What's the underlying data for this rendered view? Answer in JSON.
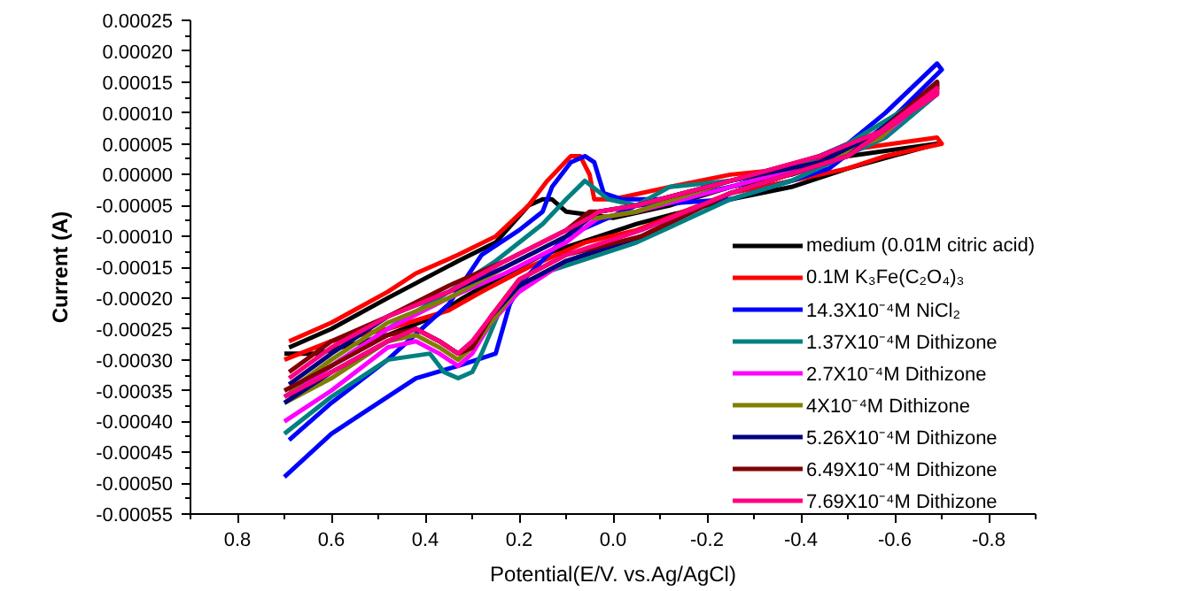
{
  "chart_data": {
    "type": "line",
    "xlabel": "Potential(E/V. vs.Ag/AgCl)",
    "ylabel": "Current (A)",
    "xlim": [
      0.9,
      -0.9
    ],
    "ylim": [
      -0.00055,
      0.00025
    ],
    "xticks": [
      {
        "value": 0.9,
        "label": null
      },
      0.8,
      {
        "value": 0.7,
        "label": null
      },
      0.6,
      {
        "value": 0.5,
        "label": null
      },
      0.4,
      {
        "value": 0.3,
        "label": null
      },
      0.2,
      {
        "value": 0.1,
        "label": null
      },
      {
        "value": 0,
        "label": "0.0"
      },
      {
        "value": -0.1,
        "label": null
      },
      -0.2,
      {
        "value": -0.3,
        "label": null
      },
      -0.4,
      {
        "value": -0.5,
        "label": null
      },
      -0.6,
      {
        "value": -0.7,
        "label": null
      },
      -0.8,
      {
        "value": -0.9,
        "label": null
      }
    ],
    "yticks": [
      0.00025,
      {
        "value": 0.000225,
        "label": null
      },
      {
        "value": 0.0002,
        "label": "0.00020"
      },
      {
        "value": 0.000175,
        "label": null
      },
      0.00015,
      {
        "value": 0.000125,
        "label": null
      },
      {
        "value": 0.0001,
        "label": "0.00010"
      },
      {
        "value": 7.5e-05,
        "label": null
      },
      {
        "value": 5e-05,
        "label": "0.00005"
      },
      {
        "value": 2.5e-05,
        "label": null
      },
      {
        "value": 0,
        "label": "0.00000"
      },
      {
        "value": -2.5e-05,
        "label": null
      },
      {
        "value": -5e-05,
        "label": "-0.00005"
      },
      {
        "value": -7.5e-05,
        "label": null
      },
      {
        "value": -0.0001,
        "label": "-0.00010"
      },
      {
        "value": -0.000125,
        "label": null
      },
      -0.00015,
      {
        "value": -0.000175,
        "label": null
      },
      {
        "value": -0.0002,
        "label": "-0.00020"
      },
      {
        "value": -0.000225,
        "label": null
      },
      -0.00025,
      {
        "value": -0.000275,
        "label": null
      },
      {
        "value": -0.0003,
        "label": "-0.00030"
      },
      {
        "value": -0.000325,
        "label": null
      },
      -0.00035,
      {
        "value": -0.000375,
        "label": null
      },
      {
        "value": -0.0004,
        "label": "-0.00040"
      },
      {
        "value": -0.000425,
        "label": null
      },
      -0.00045,
      {
        "value": -0.000475,
        "label": null
      },
      {
        "value": -0.0005,
        "label": "-0.00050"
      },
      {
        "value": -0.000525,
        "label": null
      },
      -0.00055
    ],
    "legend": "bottom right",
    "series": [
      {
        "name": "medium (0.01M citric acid)",
        "color": "#000000",
        "x": [
          0.69,
          0.6,
          0.48,
          0.33,
          0.25,
          0.18,
          0.15,
          0.13,
          0.1,
          0.0,
          -0.12,
          -0.25,
          -0.38,
          -0.5,
          -0.69,
          -0.69,
          -0.5,
          -0.38,
          -0.25,
          -0.05,
          0.15,
          0.25,
          0.32,
          0.38,
          0.48,
          0.63,
          0.7
        ],
        "values": [
          -0.00028,
          -0.00025,
          -0.0002,
          -0.00014,
          -0.00011,
          -5e-05,
          -4e-05,
          -4e-05,
          -6e-05,
          -7e-05,
          -5e-05,
          -2e-05,
          0.0,
          3e-05,
          5e-05,
          5e-05,
          1e-05,
          -2e-05,
          -4e-05,
          -8e-05,
          -0.00013,
          -0.00017,
          -0.0002,
          -0.00023,
          -0.00026,
          -0.00029,
          -0.00029
        ]
      },
      {
        "name": "0.1M K₃Fe(C₂O₄)₃",
        "color": "#ff0000",
        "x": [
          0.69,
          0.6,
          0.48,
          0.42,
          0.33,
          0.25,
          0.18,
          0.14,
          0.09,
          0.07,
          0.05,
          0.04,
          0.0,
          -0.12,
          -0.25,
          -0.38,
          -0.5,
          -0.69,
          -0.7,
          -0.58,
          -0.5,
          -0.38,
          -0.25,
          -0.05,
          0.06,
          0.18,
          0.28,
          0.35,
          0.48,
          0.6,
          0.7
        ],
        "values": [
          -0.00027,
          -0.00024,
          -0.00019,
          -0.00016,
          -0.00013,
          -0.0001,
          -5e-05,
          -1e-05,
          3e-05,
          3e-05,
          0.0,
          -4e-05,
          -4e-05,
          -2e-05,
          0.0,
          1e-05,
          4e-05,
          6e-05,
          5e-05,
          3e-05,
          1e-05,
          -1e-05,
          -3e-05,
          -9e-05,
          -0.00011,
          -0.00015,
          -0.00019,
          -0.00022,
          -0.00025,
          -0.00027,
          -0.0003
        ]
      },
      {
        "name": "14.3X10⁻⁴M NiCl₂",
        "color": "#0000ff",
        "x": [
          0.69,
          0.6,
          0.48,
          0.35,
          0.28,
          0.2,
          0.15,
          0.13,
          0.09,
          0.06,
          0.04,
          0.02,
          -0.02,
          -0.12,
          -0.25,
          -0.38,
          -0.5,
          -0.58,
          -0.69,
          -0.7,
          -0.58,
          -0.46,
          -0.38,
          -0.25,
          -0.05,
          0.1,
          0.19,
          0.22,
          0.25,
          0.33,
          0.42,
          0.54,
          0.6,
          0.7
        ],
        "values": [
          -0.00043,
          -0.00037,
          -0.0003,
          -0.00021,
          -0.00013,
          -9e-05,
          -6e-05,
          -2e-05,
          2e-05,
          3e-05,
          2e-05,
          -3e-05,
          -4e-05,
          -4e-05,
          -2e-05,
          1e-05,
          5e-05,
          0.0001,
          0.00018,
          0.00017,
          8e-05,
          1e-05,
          -1e-05,
          -4e-05,
          -5e-05,
          -0.0001,
          -0.00017,
          -0.00021,
          -0.00029,
          -0.00031,
          -0.00033,
          -0.00039,
          -0.00042,
          -0.00049
        ]
      },
      {
        "name": "1.37X10⁻⁴M Dithizone",
        "color": "#008080",
        "x": [
          0.7,
          0.6,
          0.48,
          0.35,
          0.25,
          0.15,
          0.1,
          0.06,
          0.01,
          -0.05,
          -0.12,
          -0.25,
          -0.38,
          -0.5,
          -0.63,
          -0.69,
          -0.69,
          -0.58,
          -0.38,
          -0.25,
          -0.05,
          0.15,
          0.23,
          0.28,
          0.3,
          0.33,
          0.36,
          0.39,
          0.48,
          0.6,
          0.7
        ],
        "values": [
          -0.00036,
          -0.00031,
          -0.00025,
          -0.00019,
          -0.00014,
          -8e-05,
          -4e-05,
          -1e-05,
          -4e-05,
          -5e-05,
          -2e-05,
          -1e-05,
          1e-05,
          5e-05,
          0.00011,
          0.00014,
          0.00013,
          6e-05,
          -1e-05,
          -4e-05,
          -0.00011,
          -0.00016,
          -0.0002,
          -0.00029,
          -0.00032,
          -0.00033,
          -0.00032,
          -0.00029,
          -0.0003,
          -0.00036,
          -0.00042
        ]
      },
      {
        "name": "2.7X10⁻⁴M Dithizone",
        "color": "#ff00ff",
        "x": [
          0.69,
          0.6,
          0.48,
          0.35,
          0.23,
          0.1,
          0.05,
          0.03,
          -0.05,
          -0.25,
          -0.44,
          -0.57,
          -0.69,
          -0.69,
          -0.63,
          -0.5,
          -0.25,
          -0.06,
          0.1,
          0.2,
          0.26,
          0.3,
          0.33,
          0.37,
          0.42,
          0.48,
          0.6,
          0.7
        ],
        "values": [
          -0.00036,
          -0.00031,
          -0.00025,
          -0.0002,
          -0.00016,
          -0.00011,
          -8e-05,
          -7e-05,
          -6e-05,
          -2e-05,
          2e-05,
          6e-05,
          0.00014,
          0.00013,
          0.0001,
          3e-05,
          -3e-05,
          -0.0001,
          -0.00014,
          -0.00019,
          -0.00024,
          -0.00029,
          -0.00031,
          -0.00029,
          -0.00027,
          -0.00028,
          -0.00035,
          -0.0004
        ]
      },
      {
        "name": "4X10⁻⁴M Dithizone",
        "color": "#808000",
        "x": [
          0.69,
          0.6,
          0.48,
          0.35,
          0.23,
          0.1,
          0.05,
          0.03,
          -0.05,
          -0.25,
          -0.44,
          -0.57,
          -0.69,
          -0.69,
          -0.63,
          -0.5,
          -0.25,
          -0.06,
          0.1,
          0.2,
          0.26,
          0.3,
          0.33,
          0.37,
          0.42,
          0.48,
          0.6,
          0.7
        ],
        "values": [
          -0.00035,
          -0.0003,
          -0.00024,
          -0.0002,
          -0.00015,
          -0.0001,
          -7e-05,
          -7e-05,
          -6e-05,
          -1e-05,
          2e-05,
          6e-05,
          0.00015,
          0.00014,
          0.0001,
          3e-05,
          -3e-05,
          -0.0001,
          -0.00014,
          -0.00018,
          -0.00024,
          -0.00028,
          -0.0003,
          -0.00028,
          -0.00026,
          -0.00027,
          -0.00033,
          -0.00037
        ]
      },
      {
        "name": "5.26X10⁻⁴M Dithizone",
        "color": "#000080",
        "x": [
          0.69,
          0.6,
          0.48,
          0.35,
          0.23,
          0.1,
          0.05,
          0.03,
          -0.05,
          -0.25,
          -0.44,
          -0.57,
          -0.69,
          -0.69,
          -0.63,
          -0.5,
          -0.25,
          -0.06,
          0.1,
          0.2,
          0.26,
          0.3,
          0.33,
          0.37,
          0.42,
          0.48,
          0.6,
          0.7
        ],
        "values": [
          -0.00034,
          -0.00029,
          -0.00023,
          -0.00019,
          -0.00015,
          -0.0001,
          -7e-05,
          -6e-05,
          -5e-05,
          -1e-05,
          2e-05,
          7e-05,
          0.00015,
          0.00014,
          0.00011,
          3e-05,
          -3e-05,
          -0.0001,
          -0.00014,
          -0.00018,
          -0.00023,
          -0.00028,
          -0.00029,
          -0.00027,
          -0.00025,
          -0.00027,
          -0.00032,
          -0.00037
        ]
      },
      {
        "name": "6.49X10⁻⁴M Dithizone",
        "color": "#800000",
        "x": [
          0.69,
          0.6,
          0.48,
          0.35,
          0.23,
          0.1,
          0.05,
          0.03,
          -0.05,
          -0.25,
          -0.44,
          -0.57,
          -0.69,
          -0.69,
          -0.63,
          -0.5,
          -0.25,
          -0.06,
          0.1,
          0.2,
          0.26,
          0.3,
          0.33,
          0.37,
          0.42,
          0.48,
          0.6,
          0.7
        ],
        "values": [
          -0.00032,
          -0.00027,
          -0.00023,
          -0.00018,
          -0.00014,
          -9e-05,
          -6e-05,
          -6e-05,
          -5e-05,
          -1e-05,
          3e-05,
          7e-05,
          0.00015,
          0.00014,
          0.0001,
          3e-05,
          -3e-05,
          -0.0001,
          -0.00013,
          -0.00017,
          -0.00023,
          -0.00028,
          -0.00029,
          -0.00027,
          -0.00025,
          -0.00026,
          -0.00031,
          -0.00035
        ]
      },
      {
        "name": "7.69X10⁻⁴M Dithizone",
        "color": "#ff0080",
        "x": [
          0.69,
          0.6,
          0.48,
          0.35,
          0.23,
          0.1,
          0.05,
          0.03,
          -0.05,
          -0.25,
          -0.44,
          -0.57,
          -0.69,
          -0.69,
          -0.63,
          -0.5,
          -0.25,
          -0.06,
          0.1,
          0.2,
          0.26,
          0.3,
          0.33,
          0.37,
          0.42,
          0.48,
          0.6,
          0.7
        ],
        "values": [
          -0.00033,
          -0.00028,
          -0.00023,
          -0.00019,
          -0.00014,
          -9e-05,
          -7e-05,
          -6e-05,
          -5e-05,
          -1e-05,
          3e-05,
          7e-05,
          0.00014,
          0.00013,
          0.0001,
          3e-05,
          -3e-05,
          -9e-05,
          -0.00013,
          -0.00017,
          -0.00023,
          -0.00027,
          -0.00029,
          -0.00027,
          -0.00025,
          -0.00027,
          -0.00032,
          -0.00036
        ]
      }
    ]
  }
}
